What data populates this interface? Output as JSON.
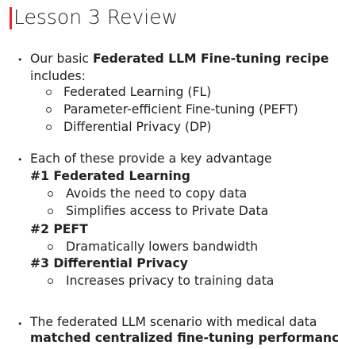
{
  "colors": {
    "accent": "#e8232e",
    "text": "#222222"
  },
  "slide": {
    "title": "Lesson 3 Review",
    "section1": {
      "intro": "Our basic ",
      "intro_bold": "Federated LLM Fine-tuning recipe",
      "intro_cont": "includes:",
      "items": [
        "Federated Learning (FL)",
        "Parameter-efficient Fine-tuning (PEFT)",
        "Differential Privacy (DP)"
      ]
    },
    "section2": {
      "intro": "Each of these provide a key advantage",
      "groups": [
        {
          "heading": "#1 Federated Learning",
          "items": [
            "Avoids the need to copy data",
            "Simplifies access to Private Data"
          ]
        },
        {
          "heading": "#2 PEFT",
          "items": [
            "Dramatically lowers bandwidth"
          ]
        },
        {
          "heading": "#3 Differential Privacy",
          "items": [
            "Increases privacy to training data"
          ]
        }
      ]
    },
    "section3": {
      "line1": "The federated LLM scenario with medical data",
      "line2_bold": "matched centralized fine-tuning performance"
    }
  }
}
